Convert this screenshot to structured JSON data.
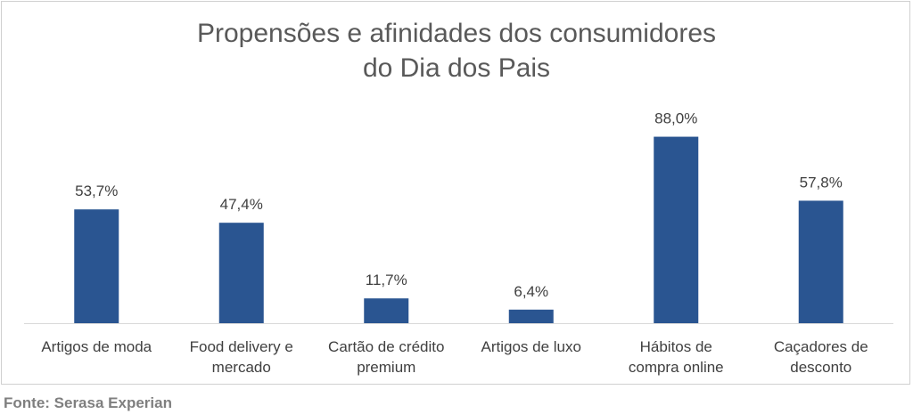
{
  "chart_data": {
    "type": "bar",
    "title_lines": [
      "Propensões e afinidades dos consumidores",
      "do Dia dos Pais"
    ],
    "categories": [
      [
        "Artigos de moda"
      ],
      [
        "Food delivery e",
        "mercado"
      ],
      [
        "Cartão de crédito",
        "premium"
      ],
      [
        "Artigos de luxo"
      ],
      [
        "Hábitos de",
        "compra online"
      ],
      [
        "Caçadores de",
        "desconto"
      ]
    ],
    "values": [
      53.7,
      47.4,
      11.7,
      6.4,
      88.0,
      57.8
    ],
    "data_labels": [
      "53,7%",
      "47,4%",
      "11,7%",
      "6,4%",
      "88,0%",
      "57,8%"
    ],
    "ylim": [
      0,
      100
    ],
    "grid": false,
    "legend": "none",
    "colors": {
      "bar": "#2A5591",
      "axis": "#d9d9d9",
      "text": "#404040",
      "title": "#595959"
    }
  },
  "source_note": "Fonte: Serasa Experian"
}
